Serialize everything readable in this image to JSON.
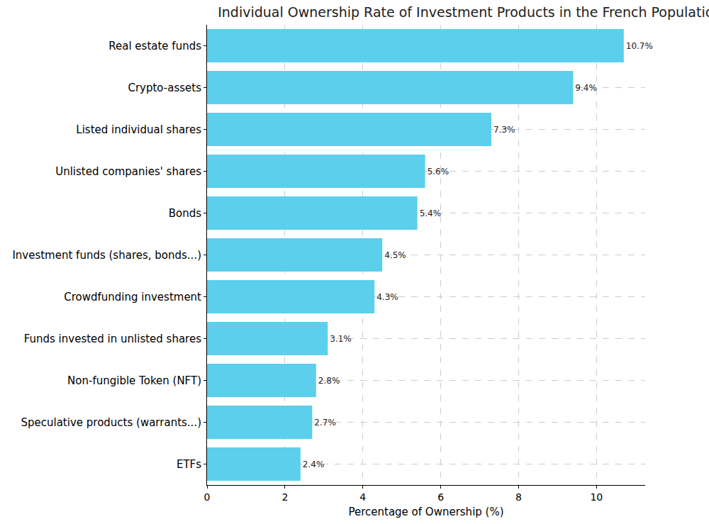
{
  "chart_data": {
    "type": "bar",
    "orientation": "horizontal",
    "title": "Individual Ownership Rate of Investment Products in the French Population",
    "x_label": "Percentage of Ownership (%)",
    "categories": [
      "Real estate funds",
      "Crypto-assets",
      "Listed individual shares",
      "Unlisted companies' shares",
      "Bonds",
      "Investment funds (shares, bonds...)",
      "Crowdfunding investment",
      "Funds invested in unlisted shares",
      "Non-fungible Token (NFT)",
      "Speculative products (warrants...)",
      "ETFs"
    ],
    "values": [
      10.7,
      9.4,
      7.3,
      5.6,
      5.4,
      4.5,
      4.3,
      3.1,
      2.8,
      2.7,
      2.4
    ],
    "value_labels": [
      "10.7%",
      "9.4%",
      "7.3%",
      "5.6%",
      "5.4%",
      "4.5%",
      "4.3%",
      "3.1%",
      "2.8%",
      "2.7%",
      "2.4%"
    ],
    "data_labels": true,
    "color": "#5bcfec",
    "xlim": [
      0,
      11.25
    ],
    "xticks": [
      0,
      2,
      4,
      6,
      8,
      10
    ],
    "grid": true
  }
}
